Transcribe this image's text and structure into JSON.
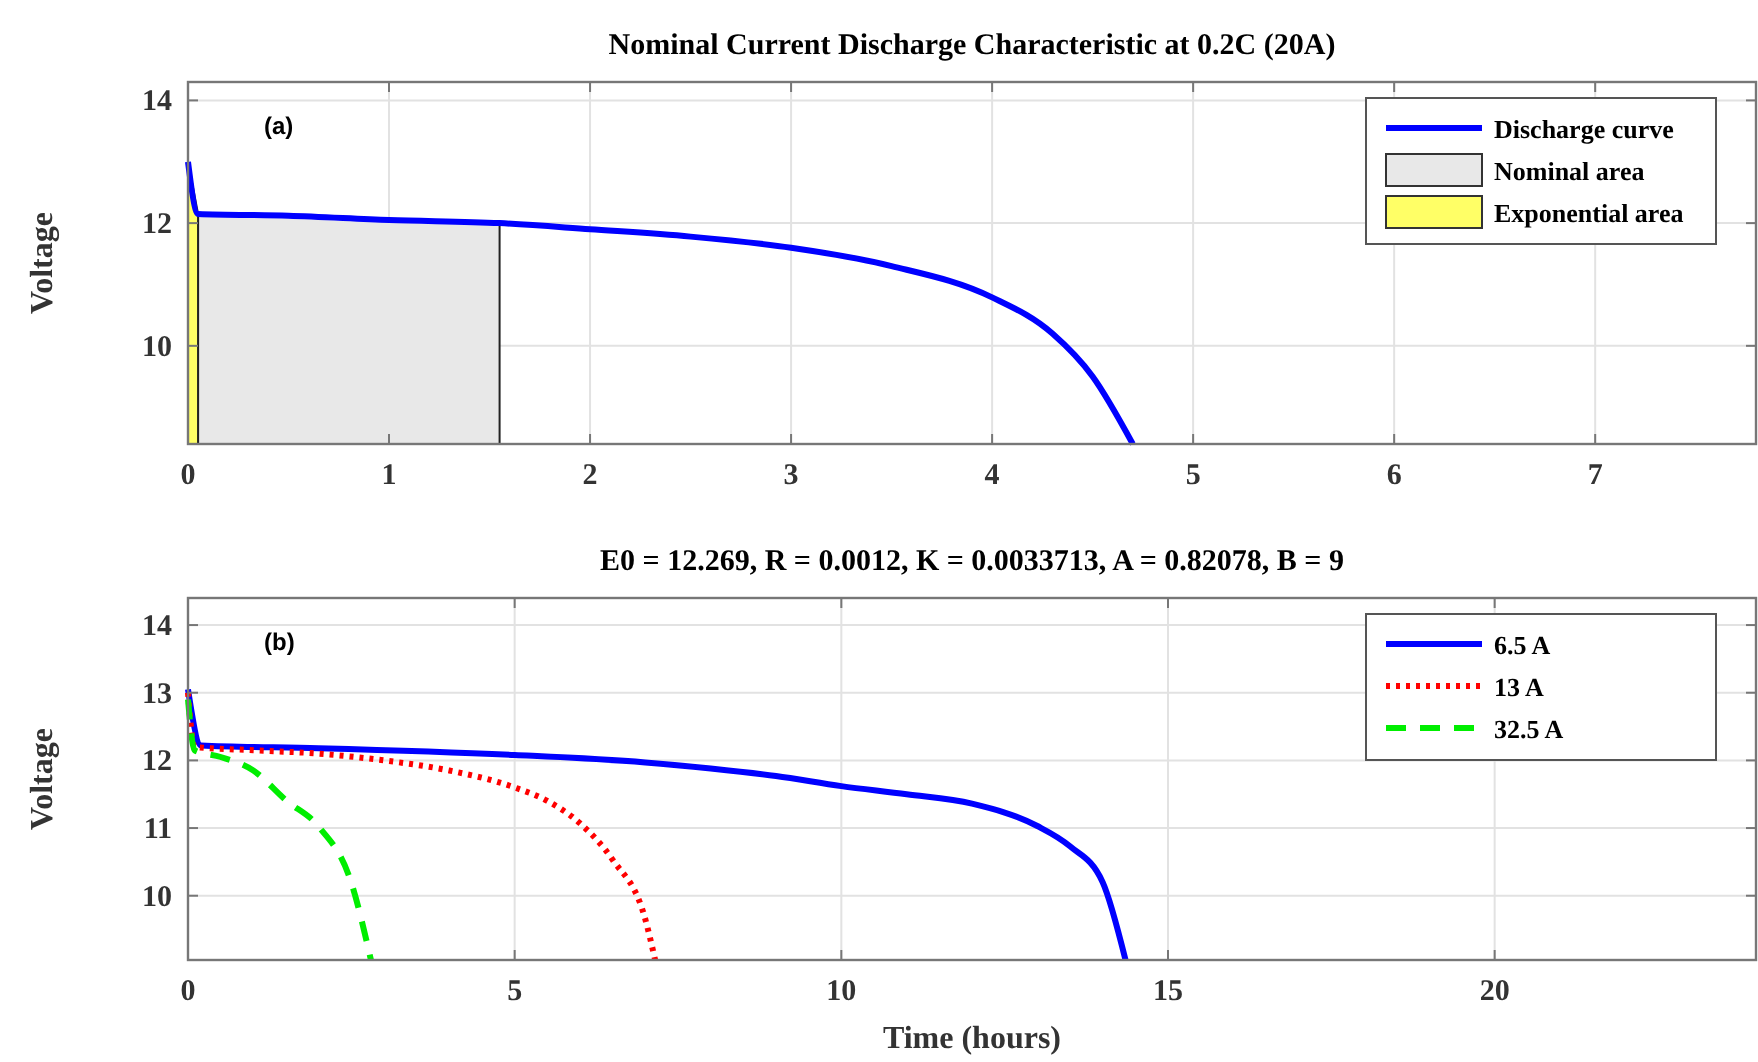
{
  "chart_data": [
    {
      "type": "line",
      "title": "Nominal Current Discharge Characteristic at 0.2C (20A)",
      "ylabel": "Voltage",
      "annotations": [
        "(a)"
      ],
      "xlim": [
        0,
        7.8
      ],
      "xticks": [
        0,
        1,
        2,
        3,
        4,
        5,
        6,
        7
      ],
      "ylim": [
        8.4,
        14.3
      ],
      "yticks": [
        10,
        12,
        14
      ],
      "grid": true,
      "legend": "top right",
      "line_style": "solid",
      "series": [
        {
          "name": "Nominal area",
          "type": "area",
          "color": "#e8e8e8",
          "x": [
            0.05,
            0.5,
            1,
            1.55
          ],
          "values": [
            12.15,
            12.12,
            12.05,
            12.0
          ]
        },
        {
          "name": "Exponential area",
          "type": "area",
          "color": "#ffff66",
          "x": [
            0,
            0.05
          ],
          "values": [
            13.0,
            12.15
          ]
        },
        {
          "name": "Discharge curve",
          "color": "#0000ff",
          "x": [
            0,
            0.05,
            0.5,
            1,
            1.55,
            2,
            2.5,
            3,
            3.5,
            4,
            4.3,
            4.5,
            4.7
          ],
          "values": [
            13.0,
            12.15,
            12.12,
            12.05,
            12.0,
            11.9,
            11.78,
            11.6,
            11.3,
            10.79,
            10.2,
            9.5,
            8.4
          ]
        }
      ]
    },
    {
      "type": "line",
      "title": "E0 = 12.269, R = 0.0012, K = 0.0033713, A = 0.82078, B = 9",
      "xlabel": "Time (hours)",
      "ylabel": "Voltage",
      "annotations": [
        "(b)"
      ],
      "xlim": [
        0,
        24
      ],
      "xticks": [
        0,
        5,
        10,
        15,
        20
      ],
      "ylim": [
        9.05,
        14.4
      ],
      "yticks": [
        10,
        11,
        12,
        13,
        14
      ],
      "grid": true,
      "legend": "top right",
      "series": [
        {
          "name": "6.5 A",
          "color": "#0000ff",
          "line_style": "solid",
          "x": [
            0,
            0.2,
            2,
            5,
            7,
            8,
            9,
            10,
            11,
            12,
            13,
            13.5,
            14,
            14.35
          ],
          "values": [
            13.05,
            12.22,
            12.18,
            12.08,
            11.97,
            11.88,
            11.77,
            11.62,
            11.5,
            11.36,
            11.03,
            10.73,
            10.2,
            9.05
          ]
        },
        {
          "name": "13 A",
          "color": "#ff0000",
          "line_style": "dotted",
          "x": [
            0,
            0.1,
            1,
            2,
            3,
            4,
            5,
            5.5,
            6,
            6.5,
            7,
            7.15
          ],
          "values": [
            13.0,
            12.2,
            12.15,
            12.1,
            12.0,
            11.85,
            11.6,
            11.4,
            11.07,
            10.53,
            9.65,
            9.05
          ]
        },
        {
          "name": "32.5 A",
          "color": "#00ee00",
          "line_style": "dashed",
          "x": [
            0,
            0.1,
            0.5,
            1,
            1.5,
            2,
            2.5,
            2.8
          ],
          "values": [
            12.9,
            12.15,
            12.05,
            11.85,
            11.41,
            11.02,
            10.19,
            9.05
          ]
        }
      ]
    }
  ]
}
